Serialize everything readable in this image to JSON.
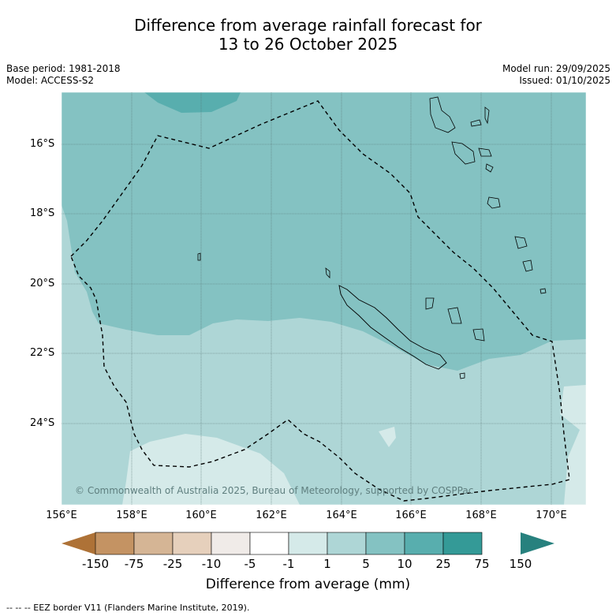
{
  "title": {
    "line1": "Difference from average rainfall forecast for",
    "line2": "13 to 26 October 2025"
  },
  "meta": {
    "base_period": "Base period: 1981-2018",
    "model": "Model: ACCESS-S2",
    "model_run": "Model run: 29/09/2025",
    "issued": "Issued: 01/10/2025"
  },
  "map": {
    "lat_labels": [
      "16°S",
      "18°S",
      "20°S",
      "22°S",
      "24°S"
    ],
    "lon_labels": [
      "156°E",
      "158°E",
      "160°E",
      "162°E",
      "164°E",
      "166°E",
      "168°E",
      "170°E"
    ],
    "copyright": "© Commonwealth of Australia 2025, Bureau of Meteorology, supported by COSPPac"
  },
  "colorbar": {
    "labels": [
      "-150",
      "-75",
      "-25",
      "-10",
      "-5",
      "-1",
      "1",
      "5",
      "10",
      "25",
      "75",
      "150"
    ],
    "colors": [
      "#ae7237",
      "#c49363",
      "#d5b595",
      "#e6d0bc",
      "#f0ebe8",
      "#ffffff",
      "#d5eae9",
      "#aed6d6",
      "#84c2c2",
      "#58aeae",
      "#349a97",
      "#27817e"
    ],
    "title": "Difference from average (mm)"
  },
  "footer": "--  --  -- EEZ border V11 (Flanders Marine Institute, 2019)."
}
